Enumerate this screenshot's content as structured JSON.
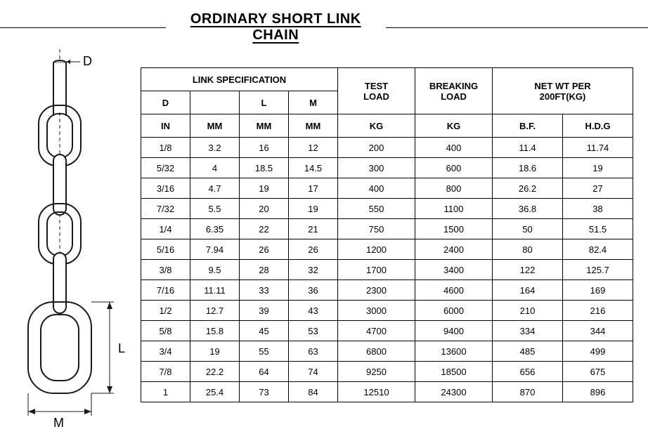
{
  "title": "ORDINARY SHORT LINK CHAIN",
  "diagram": {
    "labels": {
      "D": "D",
      "L": "L",
      "M": "M"
    },
    "stroke": "#1a1a1a",
    "fill": "#ffffff",
    "strokeWidth": 2
  },
  "table": {
    "header": {
      "link_spec": "LINK  SPECIFICATION",
      "D": "D",
      "L": "L",
      "M": "M",
      "IN": "IN",
      "MM": "MM",
      "test_load": "TEST",
      "test_load2": "LOAD",
      "breaking_load": "BREAKING",
      "breaking_load2": "LOAD",
      "net_wt": "NET WT PER",
      "net_wt2": "200FT(KG)",
      "KG": "KG",
      "bf": "B.F.",
      "hdg": "H.D.G"
    },
    "rows": [
      {
        "d_in": "1/8",
        "d_mm": "3.2",
        "l": "16",
        "m": "12",
        "test": "200",
        "brk": "400",
        "bf": "11.4",
        "hdg": "11.74"
      },
      {
        "d_in": "5/32",
        "d_mm": "4",
        "l": "18.5",
        "m": "14.5",
        "test": "300",
        "brk": "600",
        "bf": "18.6",
        "hdg": "19"
      },
      {
        "d_in": "3/16",
        "d_mm": "4.7",
        "l": "19",
        "m": "17",
        "test": "400",
        "brk": "800",
        "bf": "26.2",
        "hdg": "27"
      },
      {
        "d_in": "7/32",
        "d_mm": "5.5",
        "l": "20",
        "m": "19",
        "test": "550",
        "brk": "1100",
        "bf": "36.8",
        "hdg": "38"
      },
      {
        "d_in": "1/4",
        "d_mm": "6.35",
        "l": "22",
        "m": "21",
        "test": "750",
        "brk": "1500",
        "bf": "50",
        "hdg": "51.5"
      },
      {
        "d_in": "5/16",
        "d_mm": "7.94",
        "l": "26",
        "m": "26",
        "test": "1200",
        "brk": "2400",
        "bf": "80",
        "hdg": "82.4"
      },
      {
        "d_in": "3/8",
        "d_mm": "9.5",
        "l": "28",
        "m": "32",
        "test": "1700",
        "brk": "3400",
        "bf": "122",
        "hdg": "125.7"
      },
      {
        "d_in": "7/16",
        "d_mm": "11.11",
        "l": "33",
        "m": "36",
        "test": "2300",
        "brk": "4600",
        "bf": "164",
        "hdg": "169"
      },
      {
        "d_in": "1/2",
        "d_mm": "12.7",
        "l": "39",
        "m": "43",
        "test": "3000",
        "brk": "6000",
        "bf": "210",
        "hdg": "216"
      },
      {
        "d_in": "5/8",
        "d_mm": "15.8",
        "l": "45",
        "m": "53",
        "test": "4700",
        "brk": "9400",
        "bf": "334",
        "hdg": "344"
      },
      {
        "d_in": "3/4",
        "d_mm": "19",
        "l": "55",
        "m": "63",
        "test": "6800",
        "brk": "13600",
        "bf": "485",
        "hdg": "499"
      },
      {
        "d_in": "7/8",
        "d_mm": "22.2",
        "l": "64",
        "m": "74",
        "test": "9250",
        "brk": "18500",
        "bf": "656",
        "hdg": "675"
      },
      {
        "d_in": "1",
        "d_mm": "25.4",
        "l": "73",
        "m": "84",
        "test": "12510",
        "brk": "24300",
        "bf": "870",
        "hdg": "896"
      }
    ],
    "colors": {
      "border": "#000000",
      "background": "#ffffff",
      "text": "#000000"
    },
    "fontsize": 13
  }
}
